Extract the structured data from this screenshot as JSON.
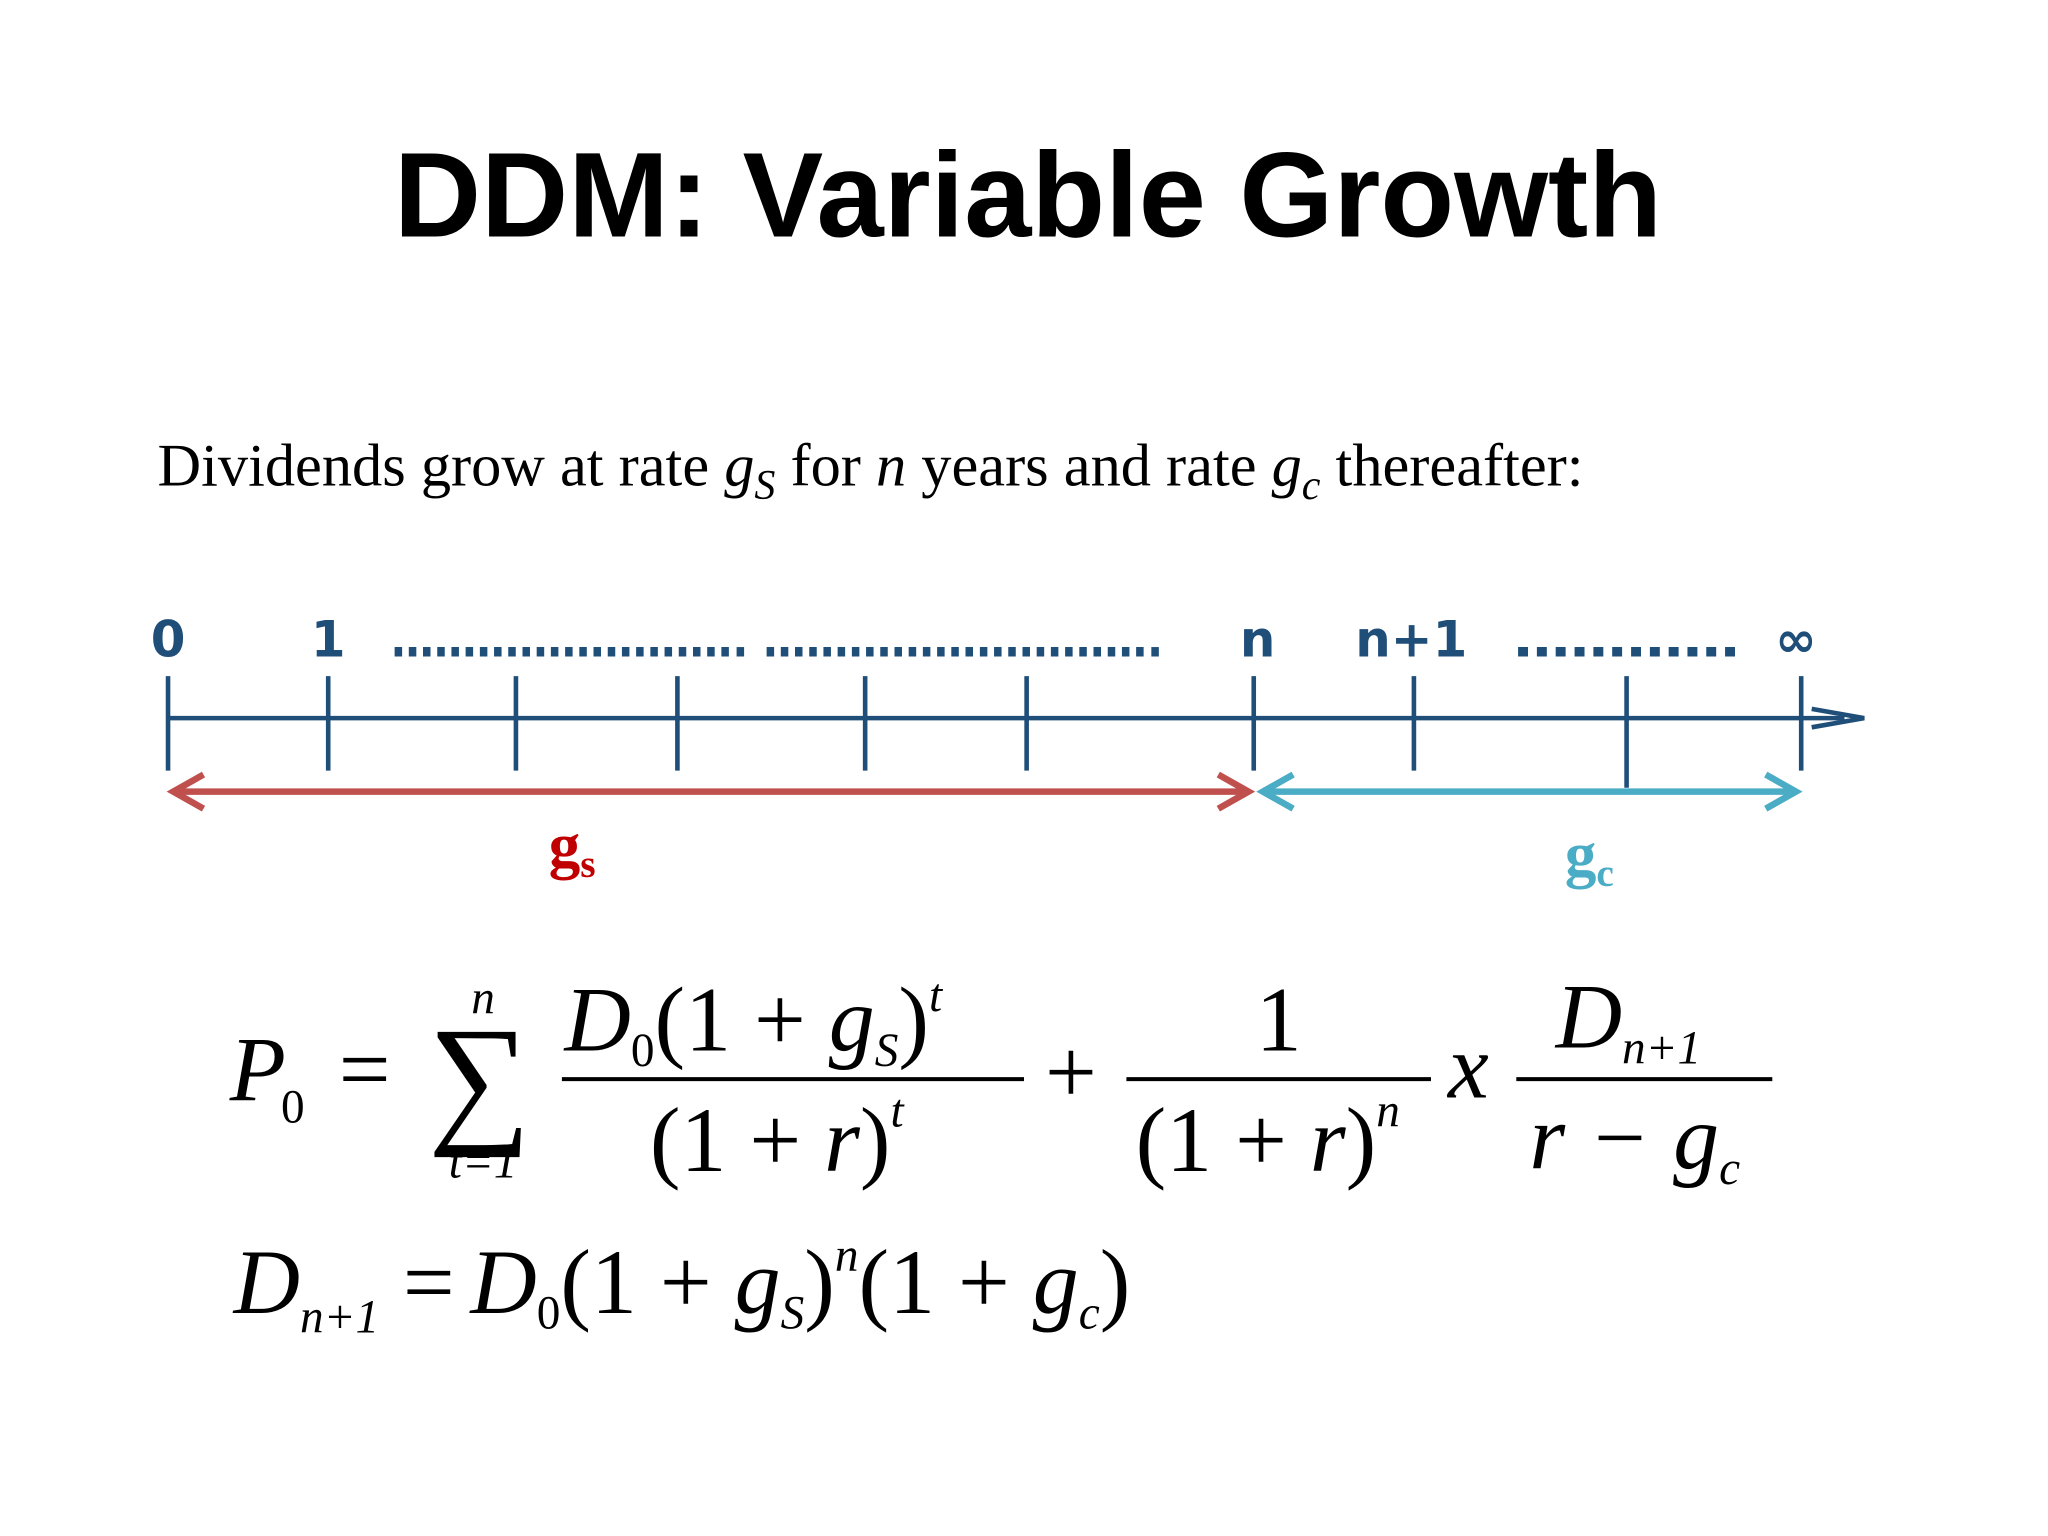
{
  "title": "DDM: Variable Growth",
  "intro": {
    "parts": [
      "Dividends grow at rate ",
      "g",
      "S",
      " for ",
      "n",
      " years and rate ",
      "g",
      "c",
      " thereafter:"
    ]
  },
  "timeline": {
    "labels": [
      "0",
      "1",
      "……………………. ……………………….",
      "n",
      "n+1",
      "…………",
      "∞"
    ],
    "segments": [
      {
        "label": "g",
        "sub": "s"
      },
      {
        "label": "g",
        "sub": "c"
      }
    ]
  },
  "formula_1": {
    "pieces": [
      "P",
      "0",
      "=",
      "∑",
      "n",
      "t=1",
      "D",
      "0",
      "(1 + ",
      "g",
      "S",
      ")",
      "t",
      "(1 + ",
      "r",
      ")",
      "t",
      "+",
      "1",
      "(1 + ",
      "r",
      ")",
      "n",
      "x",
      "D",
      "n+1",
      "r − ",
      "g",
      "c"
    ]
  },
  "formula_2": {
    "pieces": [
      "D",
      "n+1",
      "=",
      "D",
      "0",
      "(1 + ",
      "g",
      "S",
      ")",
      "n",
      "(1 + ",
      "g",
      "c",
      ")"
    ]
  }
}
